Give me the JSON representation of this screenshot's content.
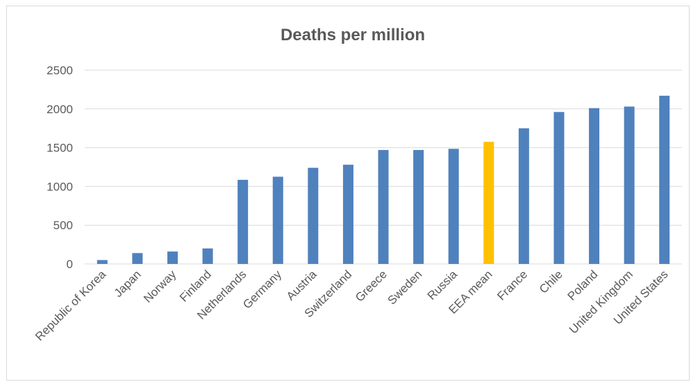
{
  "chart_data": {
    "type": "bar",
    "title": "Deaths per million",
    "xlabel": "",
    "ylabel": "",
    "ylim": [
      0,
      2500
    ],
    "yticks": [
      0,
      500,
      1000,
      1500,
      2000,
      2500
    ],
    "grid": true,
    "legend": "none",
    "categories": [
      "Republic of Korea",
      "Japan",
      "Norway",
      "Finland",
      "Netherlands",
      "Germany",
      "Austria",
      "Switzerland",
      "Greece",
      "Sweden",
      "Russia",
      "EEA mean",
      "France",
      "Chile",
      "Poland",
      "United Kingdom",
      "United States"
    ],
    "values": [
      50,
      140,
      160,
      200,
      1085,
      1125,
      1240,
      1280,
      1470,
      1470,
      1485,
      1575,
      1750,
      1960,
      2010,
      2030,
      2170
    ],
    "colors": {
      "default": "#4f81bd",
      "highlight": "#ffc000",
      "highlight_category": "EEA mean"
    }
  }
}
